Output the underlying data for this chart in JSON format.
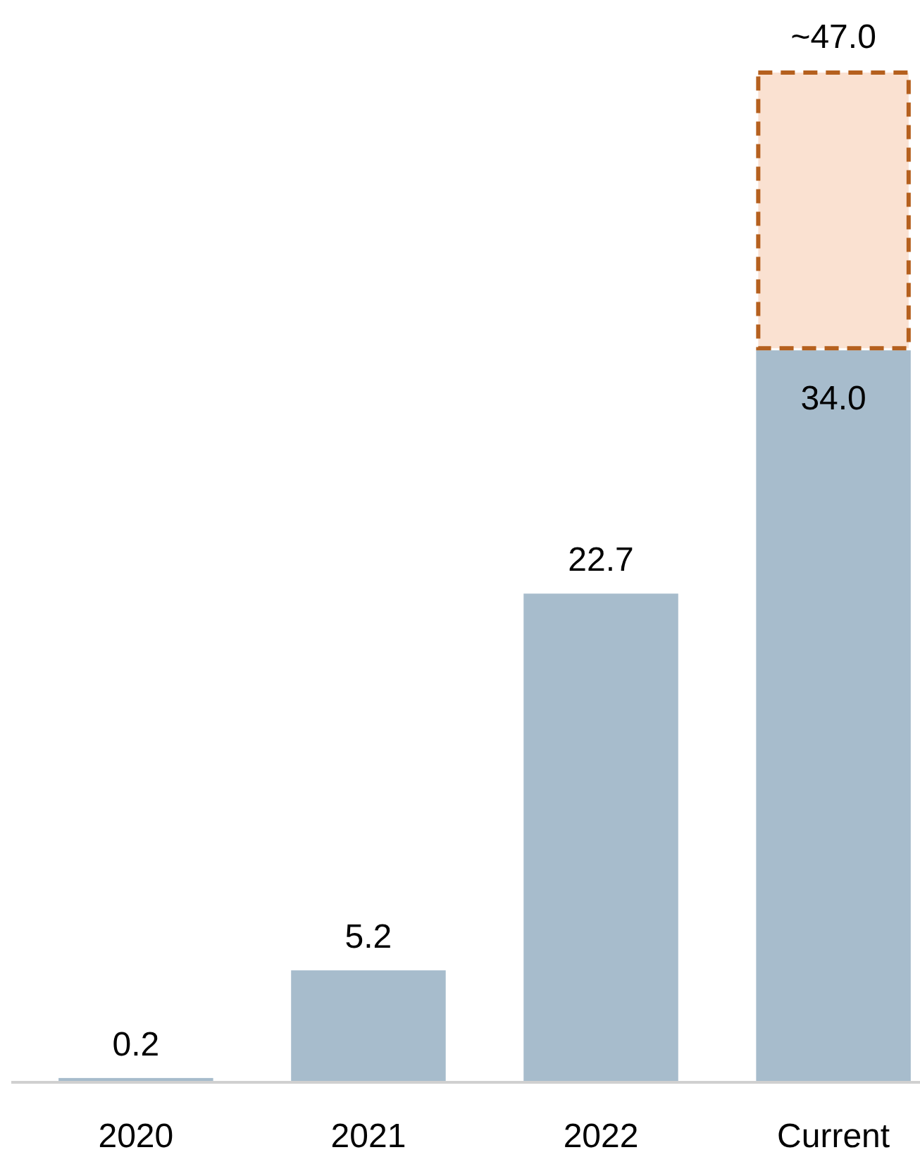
{
  "chart_data": {
    "type": "bar",
    "stacked": true,
    "categories": [
      "2020",
      "2021",
      "2022",
      "Current"
    ],
    "series": [
      {
        "color": "#a7bccc",
        "values": [
          0.2,
          5.2,
          22.7,
          34.0
        ],
        "value_labels": [
          "0.2",
          "5.2",
          "22.7",
          "34.0"
        ]
      },
      {
        "color": "#fae1d1",
        "values": [
          null,
          null,
          null,
          13.0
        ],
        "line_style": "dashed"
      }
    ],
    "totals": [
      null,
      null,
      null,
      "~47.0"
    ]
  }
}
